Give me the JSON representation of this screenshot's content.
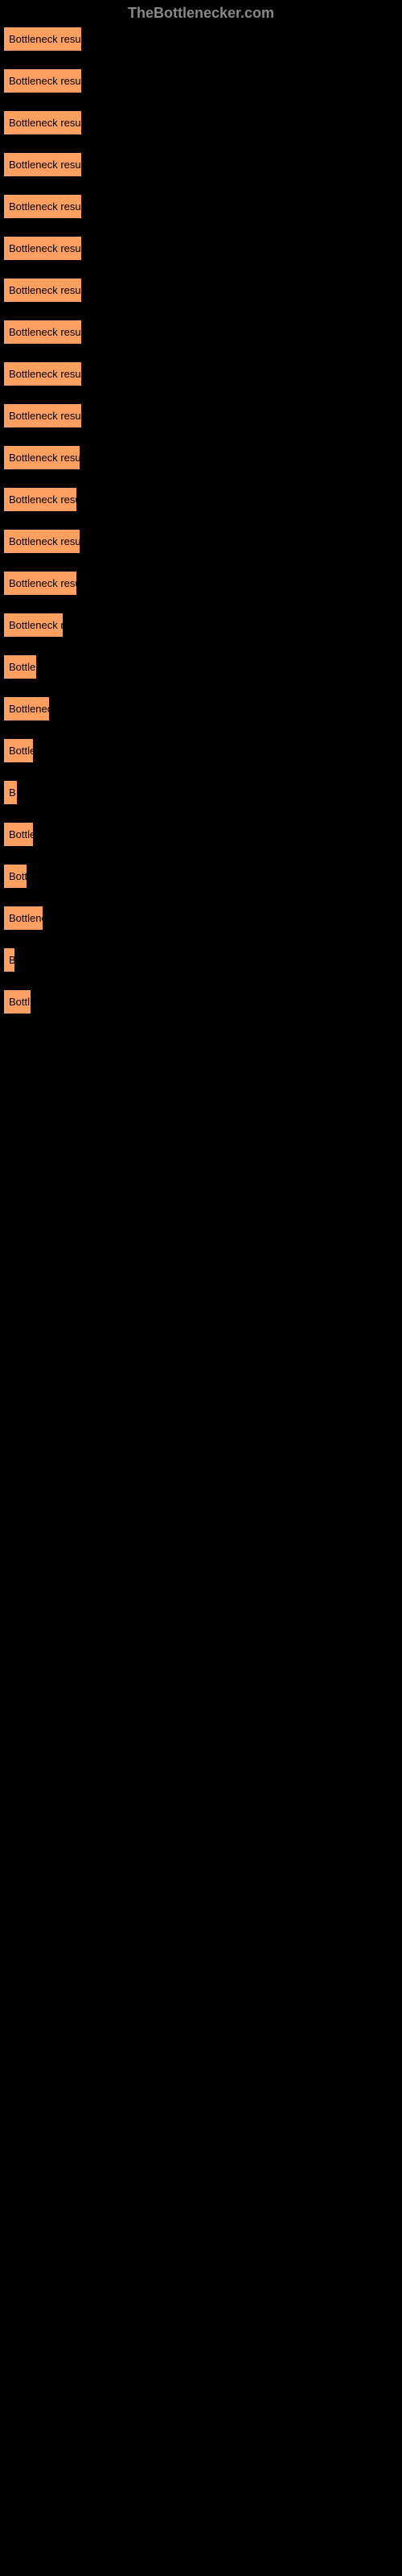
{
  "header": "TheBottlenecker.com",
  "label_bg": "#ffa060",
  "label_text_color": "#000000",
  "page_bg": "#000000",
  "header_color": "#888888",
  "items": [
    {
      "text": "Bottleneck result",
      "width": 98
    },
    {
      "text": "Bottleneck result",
      "width": 98
    },
    {
      "text": "Bottleneck result",
      "width": 98
    },
    {
      "text": "Bottleneck result",
      "width": 98
    },
    {
      "text": "Bottleneck result",
      "width": 98
    },
    {
      "text": "Bottleneck result",
      "width": 98
    },
    {
      "text": "Bottleneck result",
      "width": 98
    },
    {
      "text": "Bottleneck result",
      "width": 98
    },
    {
      "text": "Bottleneck result",
      "width": 98
    },
    {
      "text": "Bottleneck result",
      "width": 98
    },
    {
      "text": "Bottleneck result",
      "width": 96
    },
    {
      "text": "Bottleneck resul",
      "width": 92
    },
    {
      "text": "Bottleneck result",
      "width": 96
    },
    {
      "text": "Bottleneck resul",
      "width": 92
    },
    {
      "text": "Bottleneck r",
      "width": 75
    },
    {
      "text": "Bottlen",
      "width": 42
    },
    {
      "text": "Bottleneck",
      "width": 58
    },
    {
      "text": "Bottle",
      "width": 38
    },
    {
      "text": "B",
      "width": 18
    },
    {
      "text": "Bottle",
      "width": 38
    },
    {
      "text": "Bott",
      "width": 30
    },
    {
      "text": "Bottlene",
      "width": 50
    },
    {
      "text": "B",
      "width": 15
    },
    {
      "text": "Bottl",
      "width": 35
    }
  ]
}
